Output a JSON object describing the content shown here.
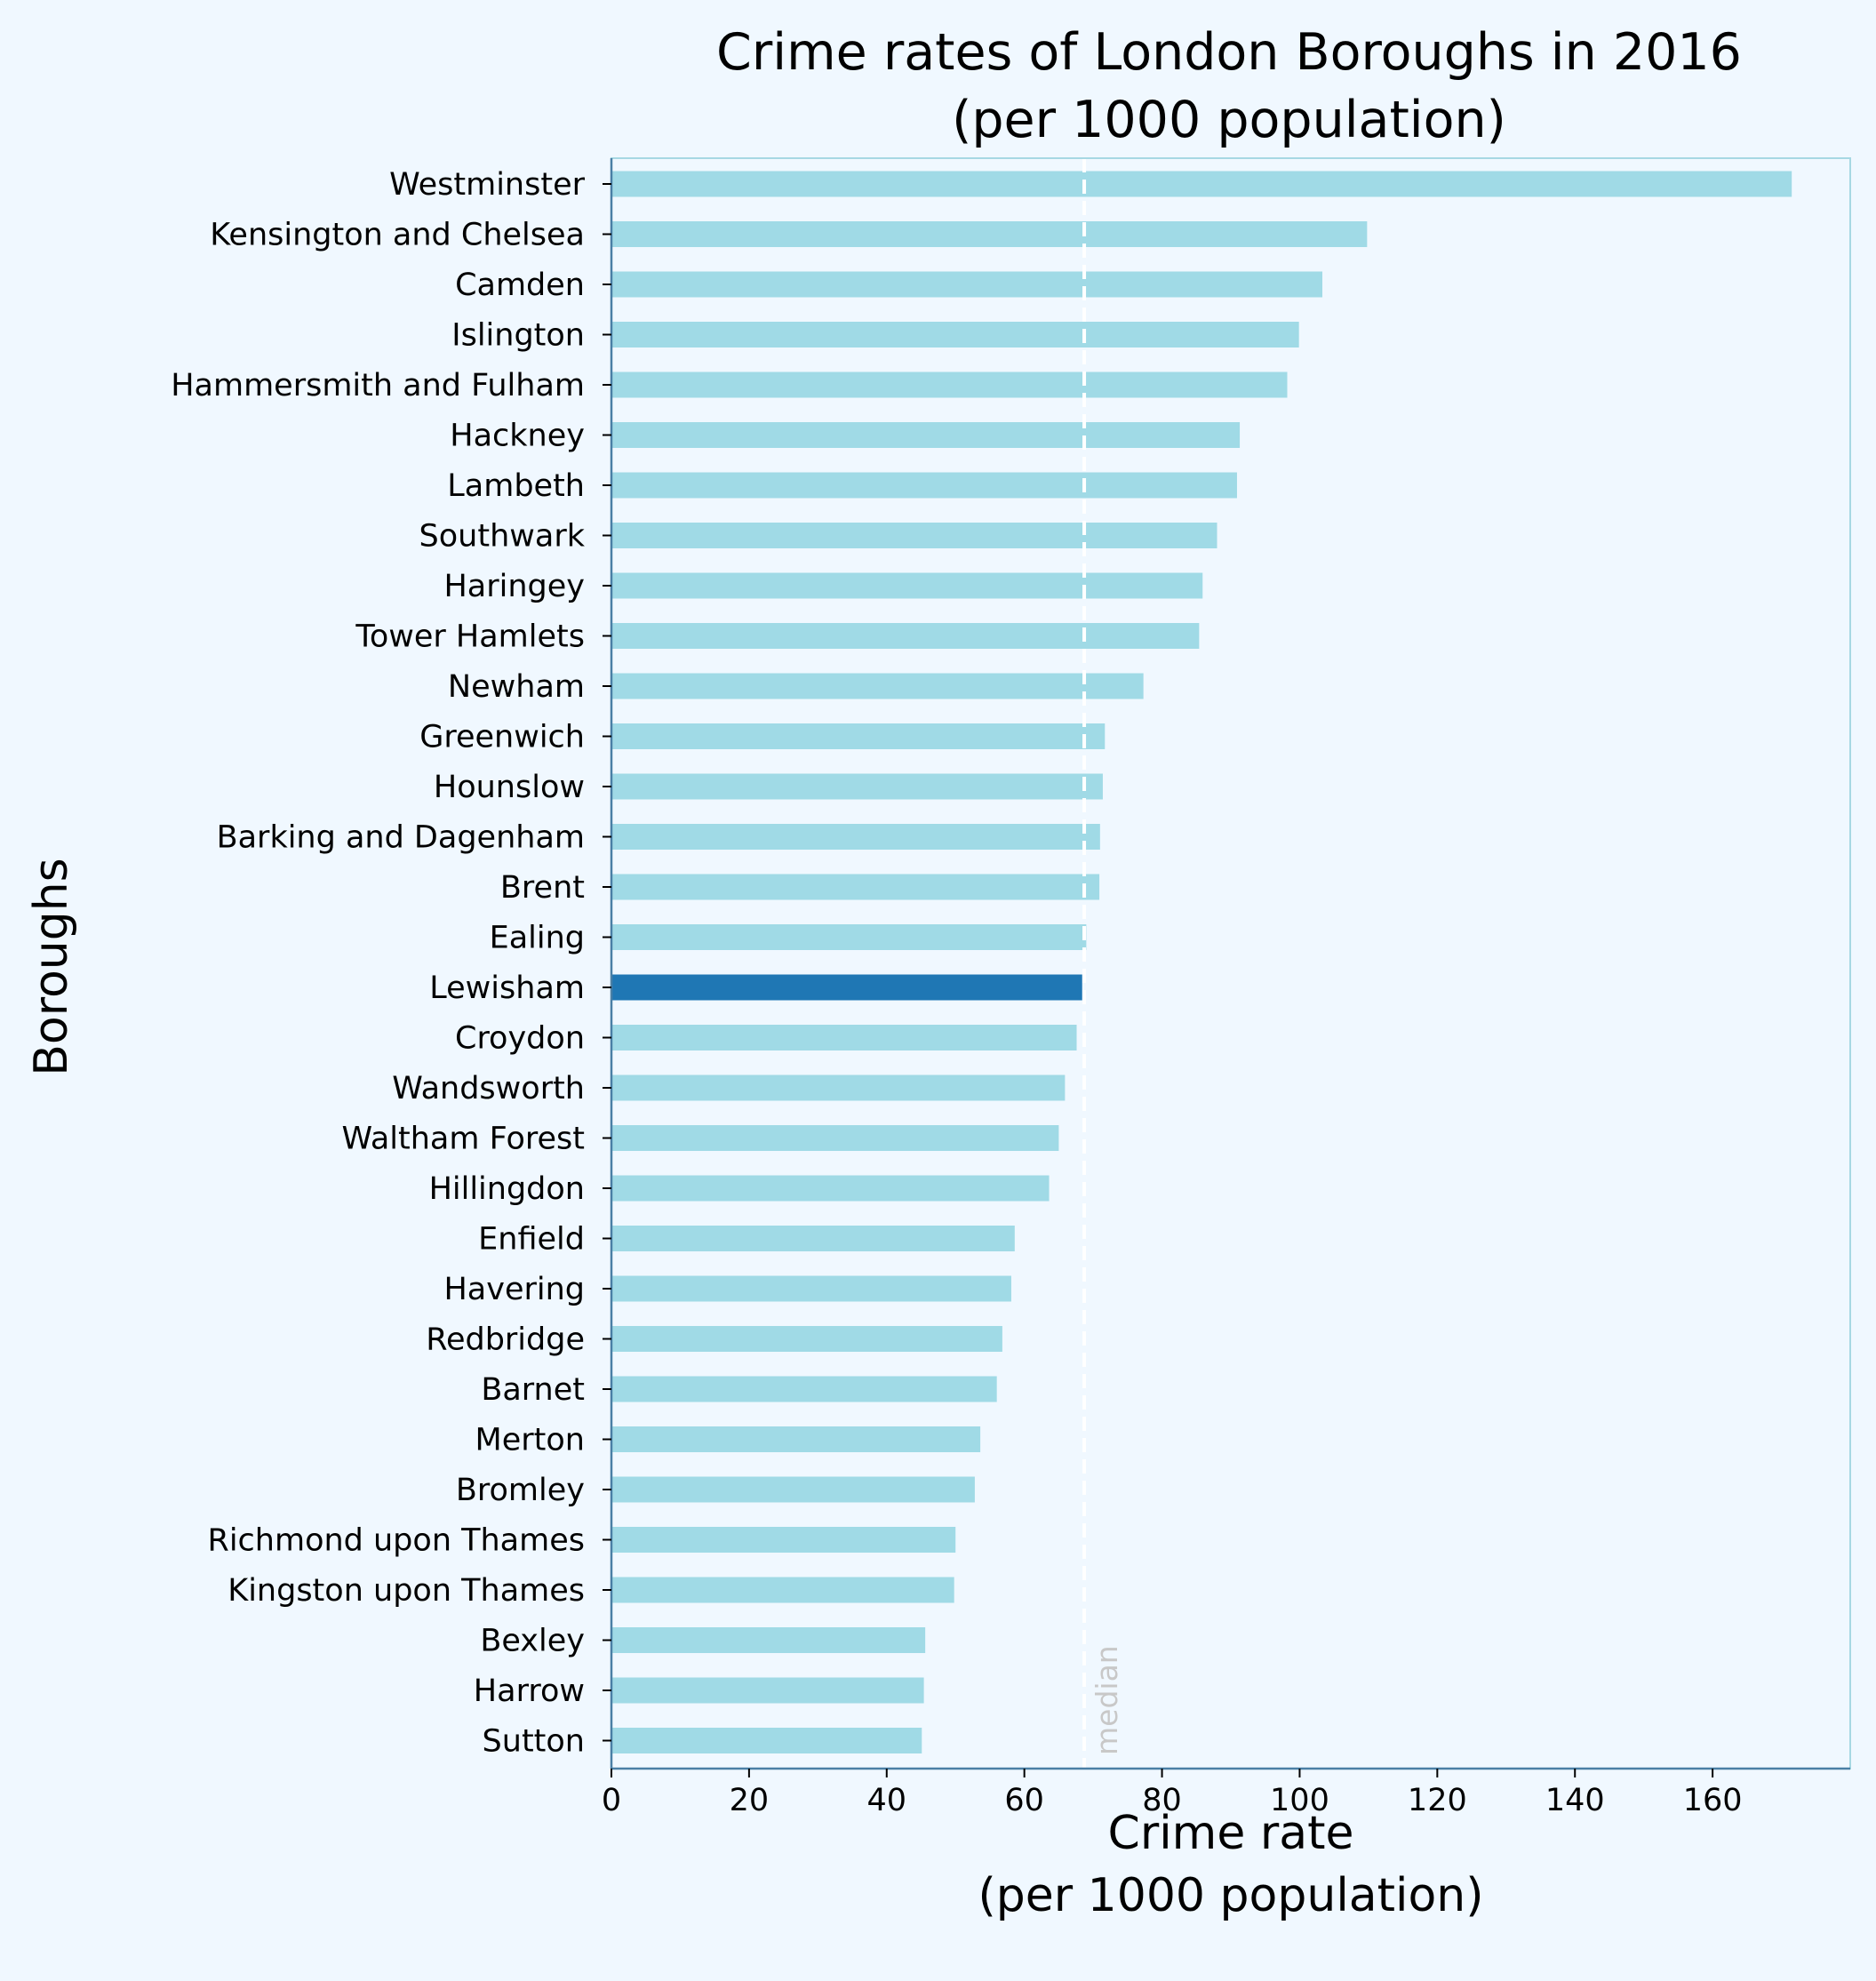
{
  "chart_data": {
    "type": "bar",
    "orientation": "horizontal",
    "title": "Crime rates of London Boroughs in 2016\n(per 1000 population)",
    "xlabel": "Crime rate\n(per 1000 population)",
    "ylabel": "Boroughs",
    "xlim": [
      0,
      180
    ],
    "xticks": [
      0,
      20,
      40,
      60,
      80,
      100,
      120,
      140,
      160
    ],
    "grid": false,
    "legend": "none",
    "categories": [
      "Westminster",
      "Kensington and Chelsea",
      "Camden",
      "Islington",
      "Hammersmith and Fulham",
      "Hackney",
      "Lambeth",
      "Southwark",
      "Haringey",
      "Tower Hamlets",
      "Newham",
      "Greenwich",
      "Hounslow",
      "Barking and Dagenham",
      "Brent",
      "Ealing",
      "Lewisham",
      "Croydon",
      "Wandsworth",
      "Waltham Forest",
      "Hillingdon",
      "Enfield",
      "Havering",
      "Redbridge",
      "Barnet",
      "Merton",
      "Bromley",
      "Richmond upon Thames",
      "Kingston upon Thames",
      "Bexley",
      "Harrow",
      "Sutton"
    ],
    "values": [
      171.5,
      109.8,
      103.3,
      99.9,
      98.2,
      91.3,
      90.9,
      88.0,
      85.9,
      85.4,
      77.3,
      71.7,
      71.4,
      71.0,
      70.9,
      69.0,
      68.4,
      67.6,
      65.9,
      65.0,
      63.6,
      58.6,
      58.1,
      56.8,
      56.0,
      53.6,
      52.8,
      50.0,
      49.8,
      45.6,
      45.4,
      45.1
    ],
    "highlight": "Lewisham",
    "bar_color": "#a0dae6",
    "highlight_color": "#1f77b4",
    "median": 68.7,
    "median_label": "median",
    "median_line_color": "#ffffff",
    "spine_color": "#a7d8e3"
  }
}
